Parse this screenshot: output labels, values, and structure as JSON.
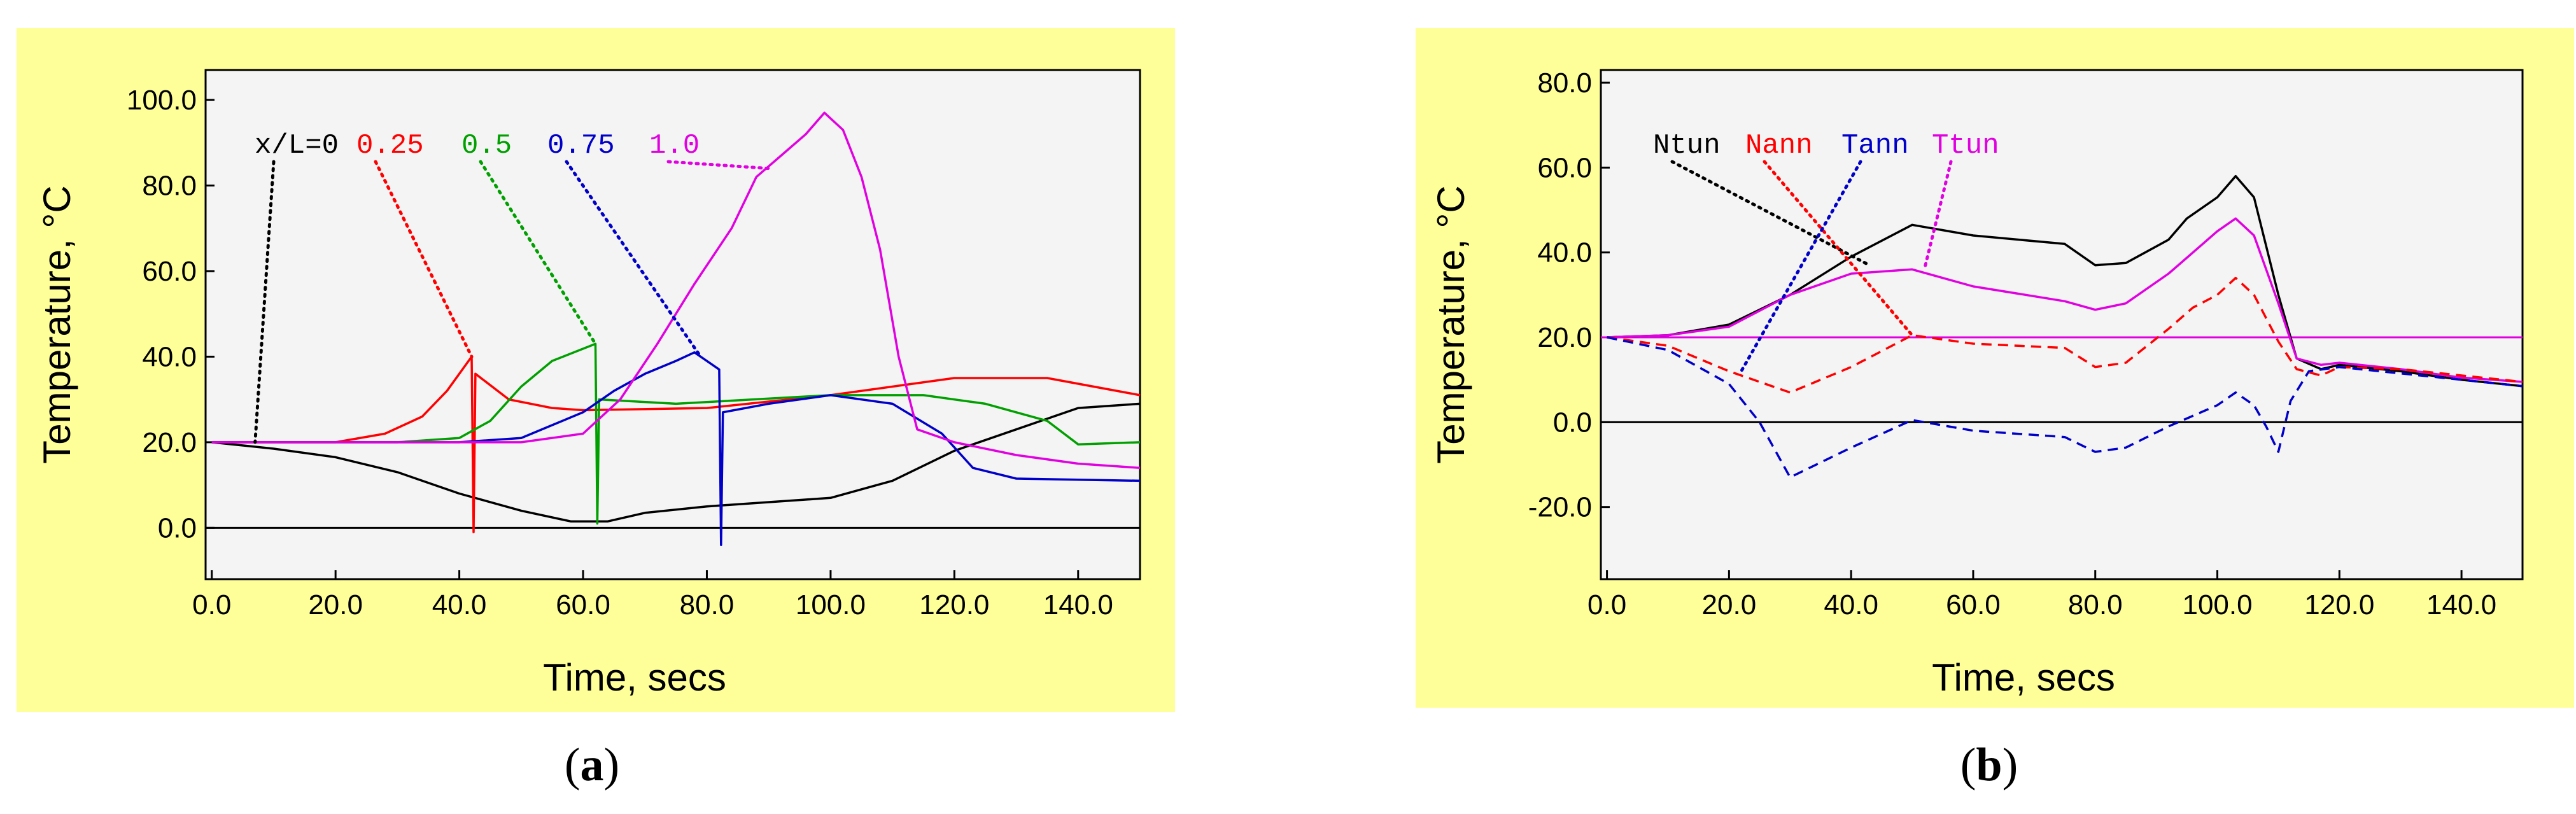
{
  "captions": {
    "a": "a",
    "b": "b"
  },
  "chart_data": [
    {
      "type": "line",
      "panel": "a",
      "xlabel": "Time, secs",
      "ylabel": "Temperature, °C",
      "xlim": [
        -1,
        150
      ],
      "ylim": [
        -12,
        107
      ],
      "xticks": [
        "0.0",
        "20.0",
        "40.0",
        "60.0",
        "80.0",
        "100.0",
        "120.0",
        "140.0"
      ],
      "yticks": [
        "0.0",
        "20.0",
        "40.0",
        "60.0",
        "80.0",
        "100.0"
      ],
      "reference_lines": [
        {
          "y": 0,
          "color": "#000000"
        }
      ],
      "legend_labels": [
        {
          "text": "x/L=0",
          "color": "#000000"
        },
        {
          "text": "0.25",
          "color": "#ff0000"
        },
        {
          "text": "0.5",
          "color": "#00a000"
        },
        {
          "text": "0.75",
          "color": "#0000c8"
        },
        {
          "text": "1.0",
          "color": "#e000e0"
        }
      ],
      "series": [
        {
          "name": "x/L=0",
          "color": "#000000",
          "dash": "solid",
          "points": [
            [
              0,
              20
            ],
            [
              10,
              18.5
            ],
            [
              20,
              16.5
            ],
            [
              30,
              13
            ],
            [
              40,
              8
            ],
            [
              50,
              4
            ],
            [
              58,
              1.5
            ],
            [
              64,
              1.5
            ],
            [
              70,
              3.5
            ],
            [
              80,
              5
            ],
            [
              90,
              6
            ],
            [
              100,
              7
            ],
            [
              110,
              11
            ],
            [
              120,
              18
            ],
            [
              130,
              23
            ],
            [
              140,
              28
            ],
            [
              150,
              29
            ]
          ]
        },
        {
          "name": "0.25",
          "color": "#ff0000",
          "dash": "solid",
          "points": [
            [
              0,
              20
            ],
            [
              20,
              20
            ],
            [
              28,
              22
            ],
            [
              34,
              26
            ],
            [
              38,
              32
            ],
            [
              42,
              40
            ],
            [
              42.3,
              -1
            ],
            [
              42.6,
              36
            ],
            [
              48,
              30
            ],
            [
              55,
              28
            ],
            [
              60,
              27.5
            ],
            [
              80,
              28
            ],
            [
              100,
              31
            ],
            [
              120,
              35
            ],
            [
              135,
              35
            ],
            [
              150,
              31
            ]
          ]
        },
        {
          "name": "0.5",
          "color": "#00a000",
          "dash": "solid",
          "points": [
            [
              0,
              20
            ],
            [
              30,
              20
            ],
            [
              40,
              21
            ],
            [
              45,
              25
            ],
            [
              50,
              33
            ],
            [
              55,
              39
            ],
            [
              62,
              43
            ],
            [
              62.3,
              1
            ],
            [
              62.6,
              30
            ],
            [
              75,
              29
            ],
            [
              100,
              31
            ],
            [
              115,
              31
            ],
            [
              125,
              29
            ],
            [
              135,
              25
            ],
            [
              140,
              19.5
            ],
            [
              150,
              20
            ]
          ]
        },
        {
          "name": "0.75",
          "color": "#0000c8",
          "dash": "solid",
          "points": [
            [
              0,
              20
            ],
            [
              40,
              20
            ],
            [
              50,
              21
            ],
            [
              55,
              24
            ],
            [
              60,
              27
            ],
            [
              65,
              32
            ],
            [
              70,
              36
            ],
            [
              75,
              39
            ],
            [
              78,
              41
            ],
            [
              82,
              37
            ],
            [
              82.3,
              -4
            ],
            [
              82.6,
              27
            ],
            [
              90,
              29
            ],
            [
              100,
              31
            ],
            [
              110,
              29
            ],
            [
              118,
              22
            ],
            [
              123,
              14
            ],
            [
              130,
              11.5
            ],
            [
              150,
              11
            ]
          ]
        },
        {
          "name": "1.0",
          "color": "#e000e0",
          "dash": "solid",
          "points": [
            [
              0,
              20
            ],
            [
              50,
              20
            ],
            [
              60,
              22
            ],
            [
              66,
              30
            ],
            [
              72,
              43
            ],
            [
              78,
              57
            ],
            [
              84,
              70
            ],
            [
              88,
              82
            ],
            [
              92,
              87
            ],
            [
              96,
              92
            ],
            [
              99,
              97
            ],
            [
              102,
              93
            ],
            [
              105,
              82
            ],
            [
              108,
              65
            ],
            [
              111,
              40
            ],
            [
              114,
              23
            ],
            [
              120,
              20
            ],
            [
              130,
              17
            ],
            [
              140,
              15
            ],
            [
              150,
              14
            ]
          ]
        }
      ],
      "pointer_lines": [
        {
          "label": 0,
          "color": "#000000",
          "to": [
            7,
            20
          ]
        },
        {
          "label": 1,
          "color": "#ff0000",
          "to": [
            42,
            40
          ]
        },
        {
          "label": 2,
          "color": "#00a000",
          "to": [
            62,
            43
          ]
        },
        {
          "label": 3,
          "color": "#0000c8",
          "to": [
            79,
            40
          ]
        },
        {
          "label": 4,
          "color": "#e000e0",
          "to": [
            90,
            84
          ]
        }
      ]
    },
    {
      "type": "line",
      "panel": "b",
      "xlabel": "Time, secs",
      "ylabel": "Temperature, °C",
      "xlim": [
        -1,
        150
      ],
      "ylim": [
        -37,
        83
      ],
      "xticks": [
        "0.0",
        "20.0",
        "40.0",
        "60.0",
        "80.0",
        "100.0",
        "120.0",
        "140.0"
      ],
      "yticks": [
        "-20.0",
        "0.0",
        "20.0",
        "40.0",
        "60.0",
        "80.0"
      ],
      "reference_lines": [
        {
          "y": 0,
          "color": "#000000"
        },
        {
          "y": 20,
          "color": "#e000e0"
        }
      ],
      "legend_labels": [
        {
          "text": "Ntun",
          "color": "#000000"
        },
        {
          "text": "Nann",
          "color": "#ff0000"
        },
        {
          "text": "Tann",
          "color": "#0000c8"
        },
        {
          "text": "Ttun",
          "color": "#e000e0"
        }
      ],
      "series": [
        {
          "name": "Ntun",
          "color": "#000000",
          "dash": "solid",
          "points": [
            [
              0,
              20
            ],
            [
              10,
              20.5
            ],
            [
              20,
              23
            ],
            [
              30,
              30
            ],
            [
              40,
              39
            ],
            [
              50,
              46.5
            ],
            [
              60,
              44
            ],
            [
              75,
              42
            ],
            [
              80,
              37
            ],
            [
              85,
              37.5
            ],
            [
              92,
              43
            ],
            [
              95,
              48
            ],
            [
              100,
              53
            ],
            [
              103,
              58
            ],
            [
              106,
              53
            ],
            [
              110,
              30
            ],
            [
              113,
              15
            ],
            [
              117,
              12.5
            ],
            [
              120,
              13.5
            ],
            [
              130,
              12
            ],
            [
              140,
              10
            ],
            [
              150,
              8.5
            ]
          ]
        },
        {
          "name": "Ttun",
          "color": "#e000e0",
          "dash": "solid",
          "points": [
            [
              0,
              20
            ],
            [
              10,
              20.5
            ],
            [
              20,
              22.5
            ],
            [
              30,
              30
            ],
            [
              40,
              35
            ],
            [
              50,
              36
            ],
            [
              60,
              32
            ],
            [
              75,
              28.5
            ],
            [
              80,
              26.5
            ],
            [
              85,
              28
            ],
            [
              92,
              35
            ],
            [
              96,
              40
            ],
            [
              100,
              45
            ],
            [
              103,
              48
            ],
            [
              106,
              44
            ],
            [
              110,
              28
            ],
            [
              113,
              15
            ],
            [
              117,
              13.5
            ],
            [
              120,
              14
            ],
            [
              130,
              12.5
            ],
            [
              140,
              10.5
            ],
            [
              150,
              9.5
            ]
          ]
        },
        {
          "name": "Nann",
          "color": "#ff0000",
          "dash": "dashed",
          "points": [
            [
              0,
              20
            ],
            [
              10,
              18
            ],
            [
              20,
              12
            ],
            [
              30,
              7
            ],
            [
              40,
              13
            ],
            [
              50,
              20.5
            ],
            [
              60,
              18.5
            ],
            [
              75,
              17.5
            ],
            [
              80,
              13
            ],
            [
              85,
              14
            ],
            [
              92,
              22
            ],
            [
              96,
              27
            ],
            [
              100,
              30
            ],
            [
              103,
              34
            ],
            [
              106,
              30
            ],
            [
              110,
              19
            ],
            [
              113,
              12.5
            ],
            [
              117,
              11
            ],
            [
              120,
              13
            ],
            [
              130,
              12.5
            ],
            [
              140,
              11
            ],
            [
              150,
              9.5
            ]
          ]
        },
        {
          "name": "Tann",
          "color": "#0000c8",
          "dash": "dashed",
          "points": [
            [
              0,
              20
            ],
            [
              10,
              17
            ],
            [
              20,
              9
            ],
            [
              25,
              0
            ],
            [
              30,
              -13
            ],
            [
              40,
              -6
            ],
            [
              50,
              0.5
            ],
            [
              60,
              -2
            ],
            [
              75,
              -3.5
            ],
            [
              80,
              -7
            ],
            [
              85,
              -6
            ],
            [
              92,
              -1
            ],
            [
              100,
              4
            ],
            [
              103,
              7
            ],
            [
              106,
              4
            ],
            [
              108,
              -1
            ],
            [
              110,
              -7
            ],
            [
              112,
              5
            ],
            [
              115,
              12
            ],
            [
              120,
              13
            ],
            [
              130,
              11.5
            ],
            [
              140,
              10
            ],
            [
              150,
              8.5
            ]
          ]
        }
      ],
      "pointer_lines": [
        {
          "label": 0,
          "color": "#000000",
          "to": [
            43,
            37
          ]
        },
        {
          "label": 1,
          "color": "#ff0000",
          "to": [
            50,
            20.5
          ]
        },
        {
          "label": 2,
          "color": "#0000c8",
          "to": [
            22,
            12
          ]
        },
        {
          "label": 3,
          "color": "#e000e0",
          "to": [
            52,
            36
          ]
        }
      ]
    }
  ]
}
